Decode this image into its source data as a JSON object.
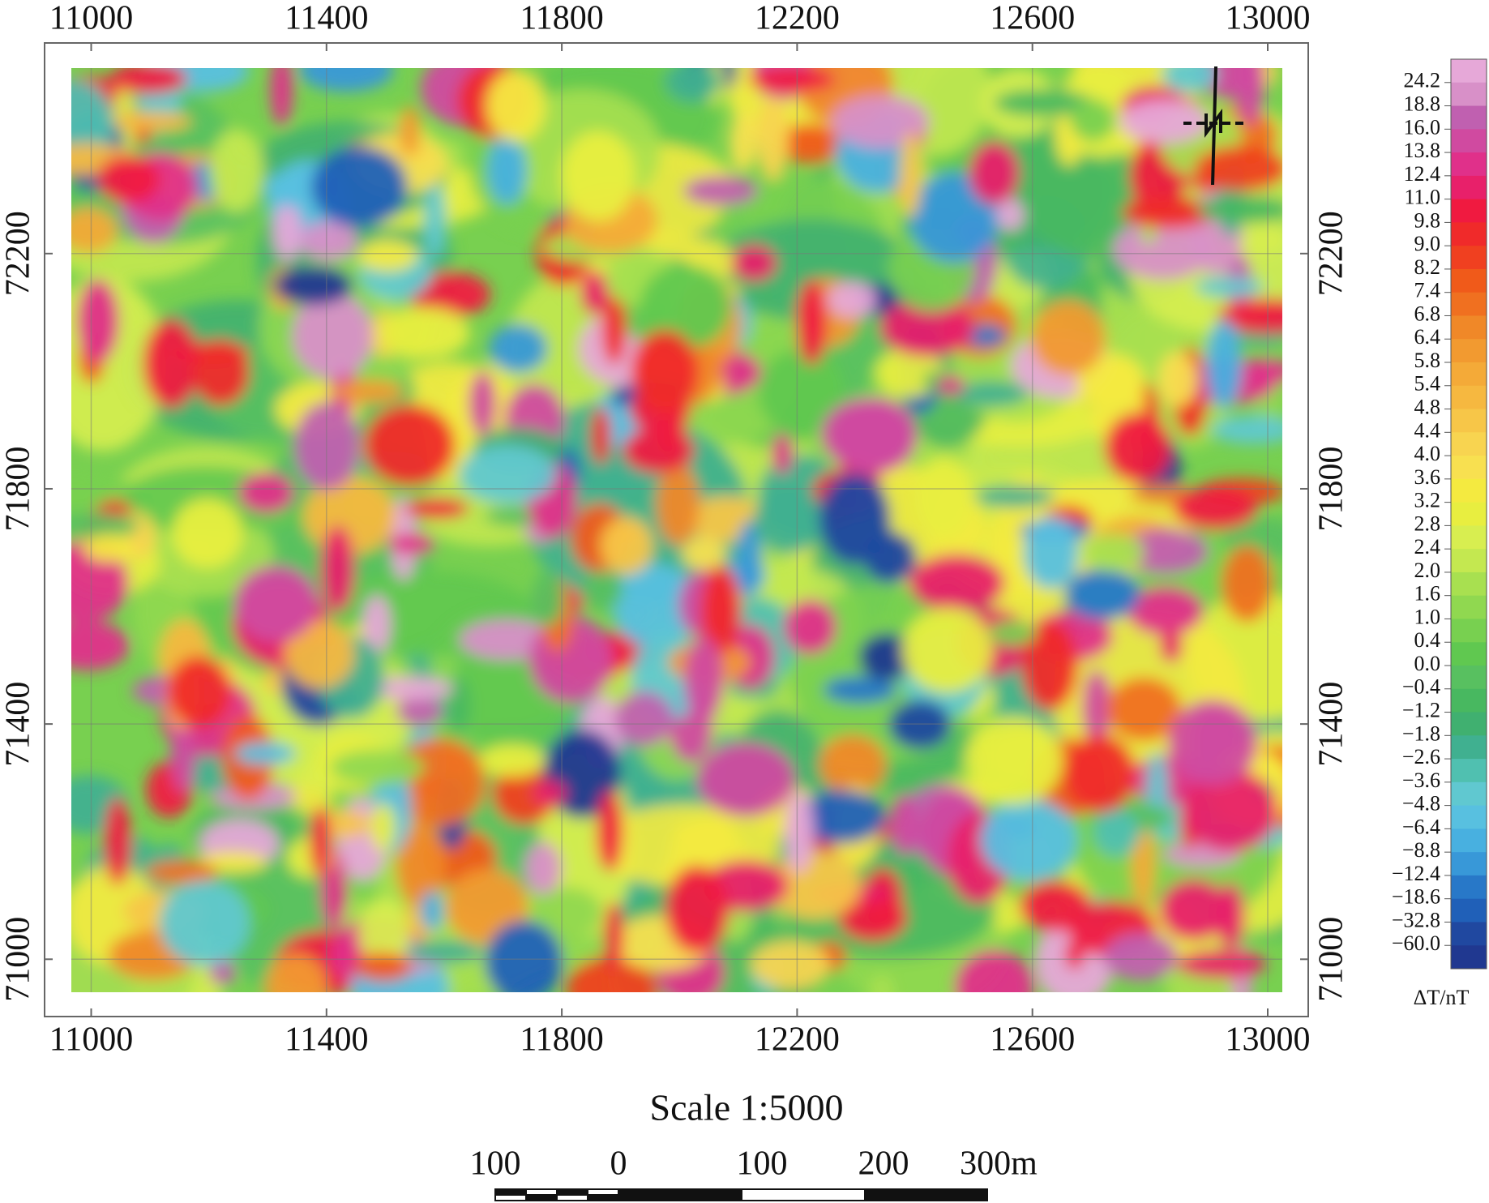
{
  "map": {
    "x_ticks": [
      11000,
      11400,
      11800,
      12200,
      12600,
      13000
    ],
    "y_ticks": [
      71000,
      71400,
      71800,
      72200
    ],
    "legend": {
      "title": "ΔT/nT",
      "levels": [
        {
          "value": 24.2,
          "label": "24.2"
        },
        {
          "value": 18.8,
          "label": "18.8"
        },
        {
          "value": 16.0,
          "label": "16.0"
        },
        {
          "value": 13.8,
          "label": "13.8"
        },
        {
          "value": 12.4,
          "label": "12.4"
        },
        {
          "value": 11.0,
          "label": "11.0"
        },
        {
          "value": 9.8,
          "label": "9.8"
        },
        {
          "value": 9.0,
          "label": "9.0"
        },
        {
          "value": 8.2,
          "label": "8.2"
        },
        {
          "value": 7.4,
          "label": "7.4"
        },
        {
          "value": 6.8,
          "label": "6.8"
        },
        {
          "value": 6.4,
          "label": "6.4"
        },
        {
          "value": 5.8,
          "label": "5.8"
        },
        {
          "value": 5.4,
          "label": "5.4"
        },
        {
          "value": 4.8,
          "label": "4.8"
        },
        {
          "value": 4.4,
          "label": "4.4"
        },
        {
          "value": 4.0,
          "label": "4.0"
        },
        {
          "value": 3.6,
          "label": "3.6"
        },
        {
          "value": 3.2,
          "label": "3.2"
        },
        {
          "value": 2.8,
          "label": "2.8"
        },
        {
          "value": 2.4,
          "label": "2.4"
        },
        {
          "value": 2.0,
          "label": "2.0"
        },
        {
          "value": 1.6,
          "label": "1.6"
        },
        {
          "value": 1.0,
          "label": "1.0"
        },
        {
          "value": 0.4,
          "label": "0.4"
        },
        {
          "value": 0.0,
          "label": "0.0"
        },
        {
          "value": -0.4,
          "label": "−0.4"
        },
        {
          "value": -1.2,
          "label": "−1.2"
        },
        {
          "value": -1.8,
          "label": "−1.8"
        },
        {
          "value": -2.6,
          "label": "−2.6"
        },
        {
          "value": -3.6,
          "label": "−3.6"
        },
        {
          "value": -4.8,
          "label": "−4.8"
        },
        {
          "value": -6.4,
          "label": "−6.4"
        },
        {
          "value": -8.8,
          "label": "−8.8"
        },
        {
          "value": -12.4,
          "label": "−12.4"
        },
        {
          "value": -18.6,
          "label": "−18.6"
        },
        {
          "value": -32.8,
          "label": "−32.8"
        },
        {
          "value": -60.0,
          "label": "−60.0"
        }
      ],
      "colors": [
        "#e6a8d8",
        "#d890c8",
        "#c060b0",
        "#d04aa0",
        "#e0308a",
        "#e8206a",
        "#f01a40",
        "#f02a2a",
        "#f04020",
        "#f05a1a",
        "#f07020",
        "#f08828",
        "#f29a30",
        "#f4aa38",
        "#f6b840",
        "#f7c648",
        "#f8d450",
        "#f8e050",
        "#f4ea40",
        "#e8ee40",
        "#d8ee50",
        "#c4e850",
        "#a8e050",
        "#90d850",
        "#78d050",
        "#60c850",
        "#58c060",
        "#48b860",
        "#40b070",
        "#40b090",
        "#50c0b0",
        "#60c8d0",
        "#58c0e0",
        "#48b0e0",
        "#3898d8",
        "#2878c8",
        "#2060b8",
        "#2048a0",
        "#203890"
      ]
    },
    "scale": {
      "title": "Scale 1:5000",
      "labels": [
        "100",
        "0",
        "100",
        "200",
        "300m"
      ]
    }
  }
}
